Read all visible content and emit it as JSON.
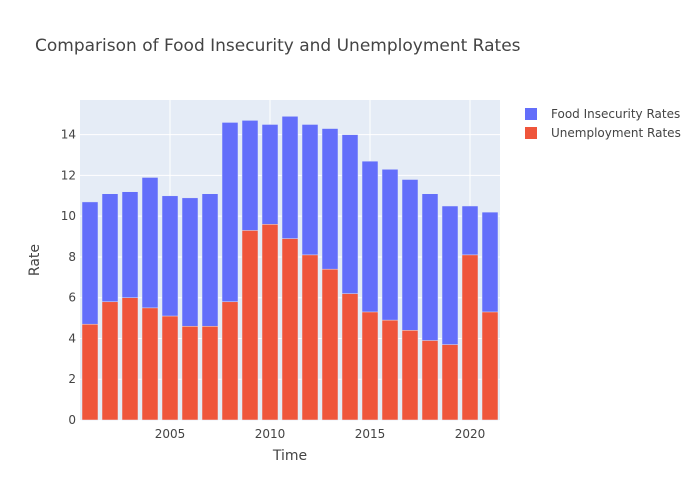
{
  "chart_data": {
    "type": "bar",
    "barmode": "overlay",
    "title": "Comparison of Food Insecurity and Unemployment Rates",
    "xlabel": "Time",
    "ylabel": "Rate",
    "x": [
      2001,
      2002,
      2003,
      2004,
      2005,
      2006,
      2007,
      2008,
      2009,
      2010,
      2011,
      2012,
      2013,
      2014,
      2015,
      2016,
      2017,
      2018,
      2019,
      2020,
      2021
    ],
    "xlim": [
      2000.5,
      2021.5
    ],
    "ylim": [
      0,
      15.7
    ],
    "xticks": [
      2005,
      2010,
      2015,
      2020
    ],
    "yticks": [
      0,
      2,
      4,
      6,
      8,
      10,
      12,
      14
    ],
    "grid": true,
    "legend_position": "top-right",
    "series": [
      {
        "name": "Food Insecurity Rates",
        "color": "#636efa",
        "values": [
          10.7,
          11.1,
          11.2,
          11.9,
          11.0,
          10.9,
          11.1,
          14.6,
          14.7,
          14.5,
          14.9,
          14.5,
          14.3,
          14.0,
          12.7,
          12.3,
          11.8,
          11.1,
          10.5,
          10.5,
          10.2
        ]
      },
      {
        "name": "Unemployment Rates",
        "color": "#ef553b",
        "values": [
          4.7,
          5.8,
          6.0,
          5.5,
          5.1,
          4.6,
          4.6,
          5.8,
          9.3,
          9.6,
          8.9,
          8.1,
          7.4,
          6.2,
          5.3,
          4.9,
          4.4,
          3.9,
          3.7,
          8.1,
          5.3
        ]
      }
    ]
  }
}
